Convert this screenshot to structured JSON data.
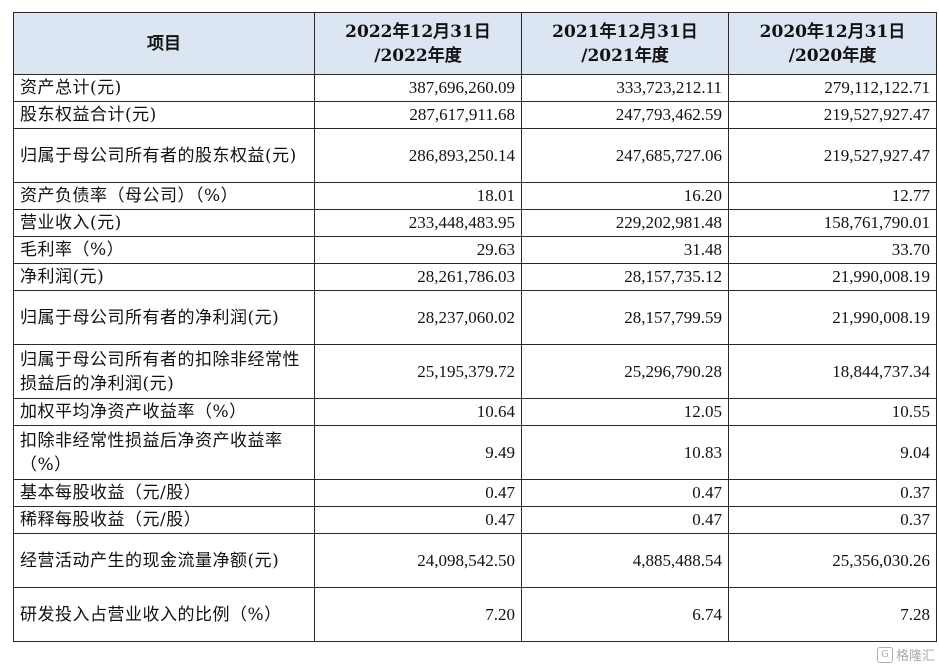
{
  "table": {
    "headers": [
      {
        "line1": "项目",
        "line2": ""
      },
      {
        "line1": "2022年12月31日",
        "line2": "/2022年度"
      },
      {
        "line1": "2021年12月31日",
        "line2": "/2021年度"
      },
      {
        "line1": "2020年12月31日",
        "line2": "/2020年度"
      }
    ],
    "rows": [
      {
        "label": "资产总计(元)",
        "values": [
          "387,696,260.09",
          "333,723,212.11",
          "279,112,122.71"
        ]
      },
      {
        "label": "股东权益合计(元)",
        "values": [
          "287,617,911.68",
          "247,793,462.59",
          "219,527,927.47"
        ]
      },
      {
        "label": "归属于母公司所有者的股东权益(元)",
        "values": [
          "286,893,250.14",
          "247,685,727.06",
          "219,527,927.47"
        ]
      },
      {
        "label": "资产负债率（母公司）（%）",
        "values": [
          "18.01",
          "16.20",
          "12.77"
        ]
      },
      {
        "label": "营业收入(元)",
        "values": [
          "233,448,483.95",
          "229,202,981.48",
          "158,761,790.01"
        ]
      },
      {
        "label": "毛利率（%）",
        "values": [
          "29.63",
          "31.48",
          "33.70"
        ]
      },
      {
        "label": "净利润(元)",
        "values": [
          "28,261,786.03",
          "28,157,735.12",
          "21,990,008.19"
        ]
      },
      {
        "label": "归属于母公司所有者的净利润(元)",
        "values": [
          "28,237,060.02",
          "28,157,799.59",
          "21,990,008.19"
        ]
      },
      {
        "label": "归属于母公司所有者的扣除非经常性损益后的净利润(元)",
        "values": [
          "25,195,379.72",
          "25,296,790.28",
          "18,844,737.34"
        ]
      },
      {
        "label": "加权平均净资产收益率（%）",
        "values": [
          "10.64",
          "12.05",
          "10.55"
        ]
      },
      {
        "label": "扣除非经常性损益后净资产收益率（%）",
        "values": [
          "9.49",
          "10.83",
          "9.04"
        ]
      },
      {
        "label": "基本每股收益（元/股）",
        "values": [
          "0.47",
          "0.47",
          "0.37"
        ]
      },
      {
        "label": "稀释每股收益（元/股）",
        "values": [
          "0.47",
          "0.47",
          "0.37"
        ]
      },
      {
        "label": "经营活动产生的现金流量净额(元)",
        "values": [
          "24,098,542.50",
          "4,885,488.54",
          "25,356,030.26"
        ]
      },
      {
        "label": "研发投入占营业收入的比例（%）",
        "values": [
          "7.20",
          "6.74",
          "7.28"
        ]
      }
    ]
  },
  "watermark": {
    "text": "格隆汇",
    "icon": "logo-icon"
  }
}
